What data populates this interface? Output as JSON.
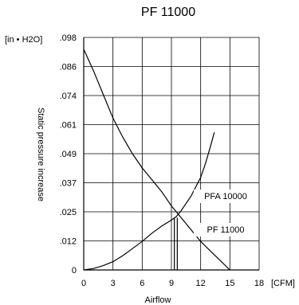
{
  "chart_data": {
    "type": "line",
    "title": "PF 11000",
    "xlabel": "Airflow",
    "ylabel": "Static pressure increase",
    "x_unit": "[CFM]",
    "y_unit": "[in • H2O]",
    "xlim": [
      0,
      18
    ],
    "ylim": [
      0,
      0.098
    ],
    "x_ticks": [
      "0",
      "3",
      "6",
      "9",
      "12",
      "15",
      "18"
    ],
    "y_ticks": [
      "0",
      ".012",
      ".025",
      ".037",
      ".049",
      ".061",
      ".074",
      ".086",
      ".098"
    ],
    "grid": true,
    "series": [
      {
        "name": "PFA 10000",
        "x": [
          0,
          1,
          2,
          3,
          4,
          5,
          6,
          7,
          8,
          9,
          10,
          11,
          12,
          13,
          14,
          15
        ],
        "y": [
          0.093,
          0.084,
          0.074,
          0.064,
          0.056,
          0.049,
          0.043,
          0.038,
          0.033,
          0.027,
          0.022,
          0.017,
          0.012,
          0.008,
          0.004,
          0.0
        ]
      },
      {
        "name": "PF 11000",
        "x": [
          0,
          1,
          2,
          3,
          4,
          5,
          6,
          7,
          8,
          9,
          9.5,
          10,
          11,
          12,
          12.5,
          13,
          13.4
        ],
        "y": [
          0.0,
          0.0006,
          0.0018,
          0.0035,
          0.006,
          0.009,
          0.012,
          0.0155,
          0.0185,
          0.021,
          0.0225,
          0.025,
          0.031,
          0.039,
          0.045,
          0.052,
          0.058
        ]
      }
    ],
    "operating_point_x": [
      9.3,
      9.6
    ]
  }
}
